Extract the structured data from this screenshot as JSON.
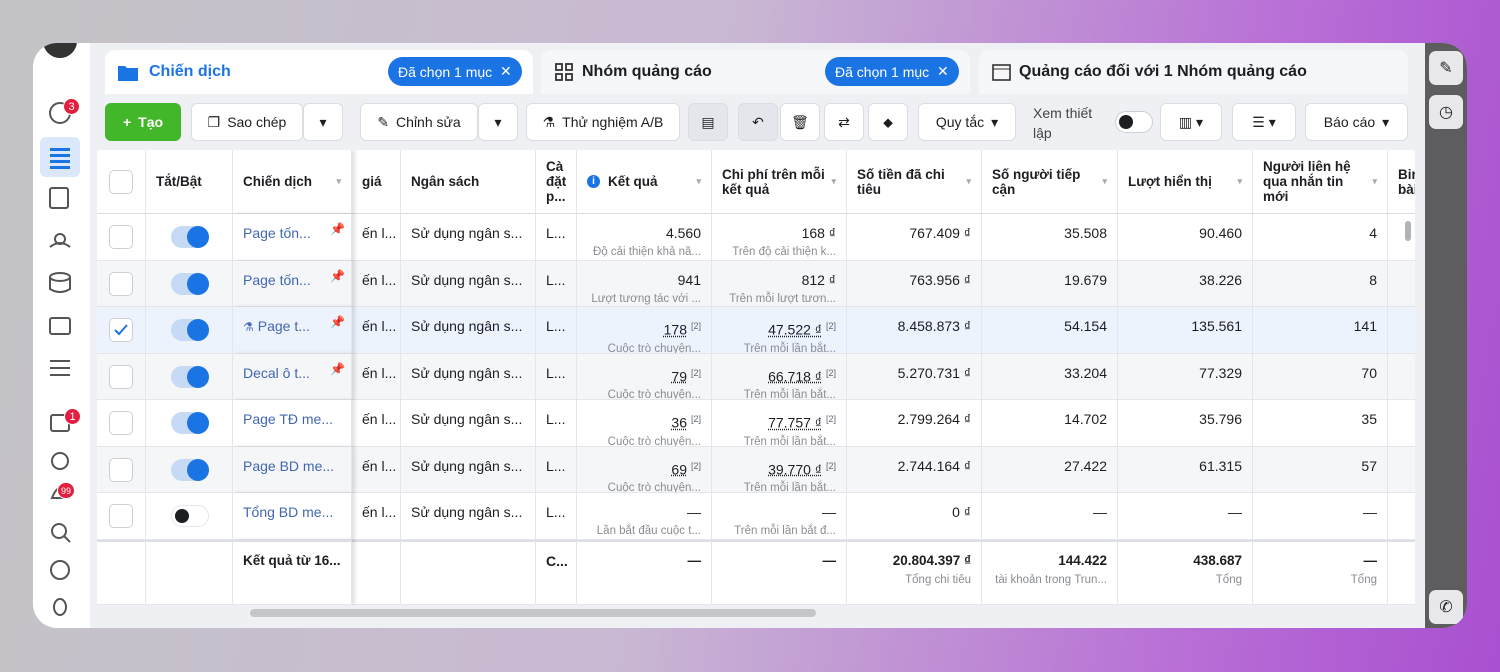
{
  "tabs": [
    {
      "label": "Chiến dịch",
      "selection": "Đã chọn 1 mục"
    },
    {
      "label": "Nhóm quảng cáo",
      "selection": "Đã chọn 1 mục"
    },
    {
      "label": "Quảng cáo đối với 1 Nhóm quảng cáo"
    }
  ],
  "sidebar_badges": [
    "3",
    "1",
    "99"
  ],
  "toolbar": {
    "create": "Tạo",
    "duplicate": "Sao chép",
    "edit": "Chỉnh sửa",
    "ab_test": "Thử nghiệm A/B",
    "rules": "Quy tắc",
    "view_setup": "Xem thiết lập",
    "reports": "Báo cáo"
  },
  "table": {
    "headers": {
      "toggle": "Tắt/Bật",
      "name": "Chiến dịch",
      "bid": "giá",
      "budget": "Ngân sách",
      "setting": "Cà đặt p...",
      "result": "Kết quả",
      "cost": "Chi phí trên mỗi kết quả",
      "spent": "Số tiền đã chi tiêu",
      "reach": "Số người tiếp cận",
      "impressions": "Lượt hiển thị",
      "contacts": "Người liên hệ qua nhắn tin mới",
      "extra": "Bir bài"
    },
    "rows": [
      {
        "on": true,
        "checked": false,
        "pinned": true,
        "name": "Page tốn...",
        "bid": "ến l...",
        "budget": "Sử dụng ngân s...",
        "setting": "L...",
        "result": "4.560",
        "result_sub": "Độ cải thiện khả nă...",
        "cost": "168 ₫",
        "cost_sub": "Trên độ cải thiện k...",
        "spent": "767.409 ₫",
        "reach": "35.508",
        "impressions": "90.460",
        "contacts": "4"
      },
      {
        "on": true,
        "checked": false,
        "pinned": true,
        "name": "Page tốn...",
        "bid": "ến l...",
        "budget": "Sử dụng ngân s...",
        "setting": "L...",
        "result": "941",
        "result_sub": "Lượt tương tác với ...",
        "cost": "812 ₫",
        "cost_sub": "Trên mỗi lượt tươn...",
        "spent": "763.956 ₫",
        "reach": "19.679",
        "impressions": "38.226",
        "contacts": "8"
      },
      {
        "on": true,
        "checked": true,
        "pinned": true,
        "test": true,
        "name": "Page t...",
        "bid": "ến l...",
        "budget": "Sử dụng ngân s...",
        "setting": "L...",
        "result": "178",
        "result_note": "[2]",
        "result_sub": "Cuộc trò chuyện...",
        "cost": "47.522 ₫",
        "cost_note": "[2]",
        "cost_sub": "Trên mỗi lần bắt...",
        "spent": "8.458.873 ₫",
        "reach": "54.154",
        "impressions": "135.561",
        "contacts": "141"
      },
      {
        "on": true,
        "checked": false,
        "pinned": true,
        "name": "Decal ô t...",
        "bid": "ến l...",
        "budget": "Sử dụng ngân s...",
        "setting": "L...",
        "result": "79",
        "result_note": "[2]",
        "result_sub": "Cuộc trò chuyện...",
        "cost": "66.718 ₫",
        "cost_note": "[2]",
        "cost_sub": "Trên mỗi lần bắt...",
        "spent": "5.270.731 ₫",
        "reach": "33.204",
        "impressions": "77.329",
        "contacts": "70"
      },
      {
        "on": true,
        "checked": false,
        "pinned": false,
        "name": "Page TĐ me...",
        "bid": "ến l...",
        "budget": "Sử dụng ngân s...",
        "setting": "L...",
        "result": "36",
        "result_note": "[2]",
        "result_sub": "Cuộc trò chuyện...",
        "cost": "77.757 ₫",
        "cost_note": "[2]",
        "cost_sub": "Trên mỗi lần bắt...",
        "spent": "2.799.264 ₫",
        "reach": "14.702",
        "impressions": "35.796",
        "contacts": "35"
      },
      {
        "on": true,
        "checked": false,
        "pinned": false,
        "name": "Page BD me...",
        "bid": "ến l...",
        "budget": "Sử dụng ngân s...",
        "setting": "L...",
        "result": "69",
        "result_note": "[2]",
        "result_sub": "Cuộc trò chuyện...",
        "cost": "39.770 ₫",
        "cost_note": "[2]",
        "cost_sub": "Trên mỗi lần bắt...",
        "spent": "2.744.164 ₫",
        "reach": "27.422",
        "impressions": "61.315",
        "contacts": "57"
      },
      {
        "on": false,
        "checked": false,
        "pinned": false,
        "name": "Tổng BD me...",
        "bid": "ến l...",
        "budget": "Sử dụng ngân s...",
        "setting": "L...",
        "result": "—",
        "result_sub": "Lần bắt đầu cuộc t...",
        "cost": "—",
        "cost_sub": "Trên mỗi lần bắt đ...",
        "spent": "0 ₫",
        "reach": "—",
        "impressions": "—",
        "contacts": "—"
      }
    ],
    "footer": {
      "name": "Kết quả từ 16...",
      "setting": "C...",
      "result": "—",
      "cost": "—",
      "spent": "20.804.397 ₫",
      "spent_sub": "Tổng chi tiêu",
      "reach": "144.422",
      "reach_sub": "tài khoản trong Trun...",
      "impressions": "438.687",
      "impressions_sub": "Tổng",
      "contacts": "—",
      "contacts_sub": "Tổng"
    }
  }
}
